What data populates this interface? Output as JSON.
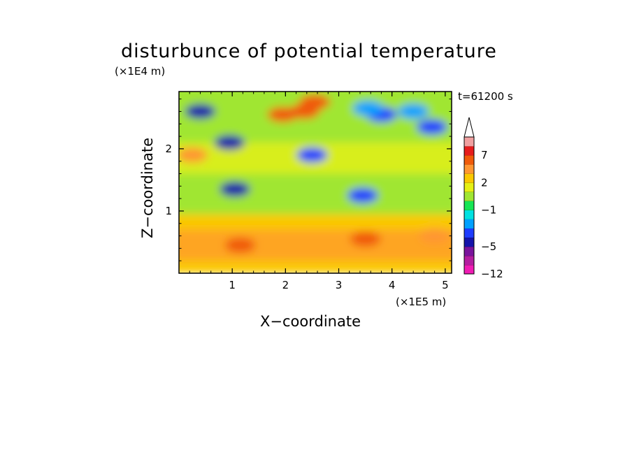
{
  "chart_data": {
    "type": "heatmap",
    "title": "disturbunce of potential temperature",
    "xlabel": "X−coordinate",
    "ylabel": "Z−coordinate",
    "x_unit": "(×1E5 m)",
    "y_unit": "(×1E4 m)",
    "annotation": "t=61200 s",
    "xlim": [
      0,
      5.12
    ],
    "ylim": [
      0,
      2.92
    ],
    "x_ticks": [
      "1",
      "2",
      "3",
      "4",
      "5"
    ],
    "x_tick_values": [
      1,
      2,
      3,
      4,
      5
    ],
    "y_ticks": [
      "1",
      "2"
    ],
    "y_tick_values": [
      1,
      2
    ],
    "colorbar": {
      "levels": [
        -12,
        -9,
        -7,
        -5,
        -4,
        -3,
        -2,
        -1,
        0,
        1,
        2,
        3,
        5,
        7,
        9,
        12
      ],
      "tick_labels": [
        "7",
        "2",
        "−1",
        "−5",
        "−12"
      ],
      "tick_values": [
        7,
        2,
        -1,
        -5,
        -12
      ],
      "colors": [
        "#f01cb4",
        "#b41ea0",
        "#7a149c",
        "#1414aa",
        "#1e3cff",
        "#00a0ff",
        "#00e1e1",
        "#16e654",
        "#a0e632",
        "#e6f014",
        "#fac800",
        "#ff9632",
        "#f05a0a",
        "#e61c1c",
        "#f0a0a0"
      ],
      "extend": "max"
    },
    "background_regions": [
      {
        "x": [
          0.0,
          5.12
        ],
        "z": [
          0.0,
          0.95
        ],
        "value": 2.5,
        "label": "lower layer mostly yellow/orange"
      },
      {
        "x": [
          0.0,
          5.12
        ],
        "z": [
          0.95,
          1.1
        ],
        "value": 0.5,
        "label": "green band near z=1"
      }
    ],
    "features": [
      {
        "x": 0.4,
        "z": 2.6,
        "value": -5,
        "label": "blue minimum upper left"
      },
      {
        "x": 0.95,
        "z": 2.1,
        "value": -5
      },
      {
        "x": 1.05,
        "z": 1.35,
        "value": -5
      },
      {
        "x": 1.95,
        "z": 2.55,
        "value": 5,
        "label": "orange maximum"
      },
      {
        "x": 2.35,
        "z": 2.6,
        "value": 5
      },
      {
        "x": 2.55,
        "z": 2.75,
        "value": 5
      },
      {
        "x": 3.8,
        "z": 2.55,
        "value": -4
      },
      {
        "x": 4.75,
        "z": 2.35,
        "value": -4
      },
      {
        "x": 3.55,
        "z": 2.65,
        "value": -3
      },
      {
        "x": 4.4,
        "z": 2.6,
        "value": -3
      },
      {
        "x": 2.5,
        "z": 1.9,
        "value": -4
      },
      {
        "x": 3.45,
        "z": 1.25,
        "value": -4
      },
      {
        "x": 1.15,
        "z": 0.45,
        "value": 5
      },
      {
        "x": 3.5,
        "z": 0.55,
        "value": 5
      },
      {
        "x": 0.25,
        "z": 1.9,
        "value": 3
      },
      {
        "x": 4.8,
        "z": 0.6,
        "value": 3
      }
    ]
  }
}
